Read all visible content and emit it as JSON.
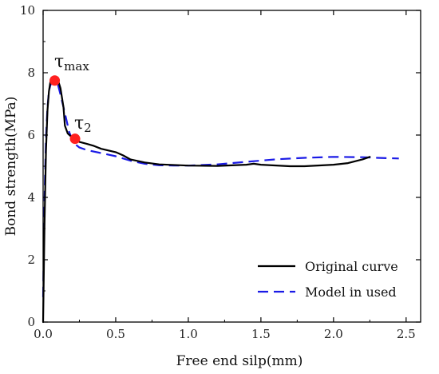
{
  "chart_data": {
    "type": "line",
    "xlabel": "Free end silp(mm)",
    "ylabel": "Bond strength(MPa)",
    "xlim": [
      0.0,
      2.6
    ],
    "ylim": [
      0,
      10
    ],
    "xticks": [
      "0.0",
      "0.5",
      "1.0",
      "1.5",
      "2.0",
      "2.5"
    ],
    "yticks": [
      "0",
      "2",
      "4",
      "6",
      "8",
      "10"
    ],
    "grid": false,
    "legend_position": "bottom-right",
    "series": [
      {
        "name": "Original curve",
        "color": "#000000",
        "style": "solid",
        "x": [
          0.0,
          0.01,
          0.02,
          0.03,
          0.04,
          0.05,
          0.06,
          0.08,
          0.1,
          0.12,
          0.14,
          0.15,
          0.17,
          0.2,
          0.22,
          0.25,
          0.3,
          0.35,
          0.4,
          0.5,
          0.55,
          0.6,
          0.7,
          0.8,
          1.0,
          1.2,
          1.4,
          1.45,
          1.5,
          1.7,
          1.8,
          2.0,
          2.1,
          2.2,
          2.25
        ],
        "y": [
          0.0,
          3.2,
          5.5,
          6.8,
          7.4,
          7.7,
          7.85,
          7.88,
          7.8,
          7.5,
          6.9,
          6.3,
          6.05,
          5.92,
          5.86,
          5.78,
          5.72,
          5.65,
          5.56,
          5.45,
          5.35,
          5.22,
          5.12,
          5.06,
          5.02,
          5.01,
          5.05,
          5.08,
          5.05,
          5.0,
          5.0,
          5.05,
          5.1,
          5.22,
          5.3
        ]
      },
      {
        "name": "Model in used",
        "color": "#1a1ae6",
        "style": "dashed",
        "x": [
          0.0,
          0.01,
          0.02,
          0.03,
          0.04,
          0.05,
          0.07,
          0.08,
          0.1,
          0.12,
          0.15,
          0.18,
          0.21,
          0.25,
          0.3,
          0.4,
          0.5,
          0.6,
          0.7,
          0.8,
          0.9,
          1.0,
          1.2,
          1.4,
          1.6,
          1.8,
          2.0,
          2.2,
          2.3,
          2.45
        ],
        "y": [
          0.8,
          4.0,
          5.9,
          6.9,
          7.4,
          7.6,
          7.72,
          7.75,
          7.65,
          7.3,
          6.7,
          6.1,
          5.75,
          5.6,
          5.52,
          5.42,
          5.32,
          5.18,
          5.08,
          5.03,
          5.02,
          5.02,
          5.06,
          5.14,
          5.22,
          5.27,
          5.3,
          5.29,
          5.27,
          5.25
        ]
      }
    ],
    "points": [
      {
        "label": "τmax",
        "x": 0.08,
        "y": 7.75,
        "color": "#ff2020"
      },
      {
        "label": "τ2",
        "x": 0.22,
        "y": 5.88,
        "color": "#ff2020"
      }
    ],
    "annotations": {
      "tau_symbol": "τ",
      "max_sub": "max",
      "two_sub": "2"
    }
  }
}
